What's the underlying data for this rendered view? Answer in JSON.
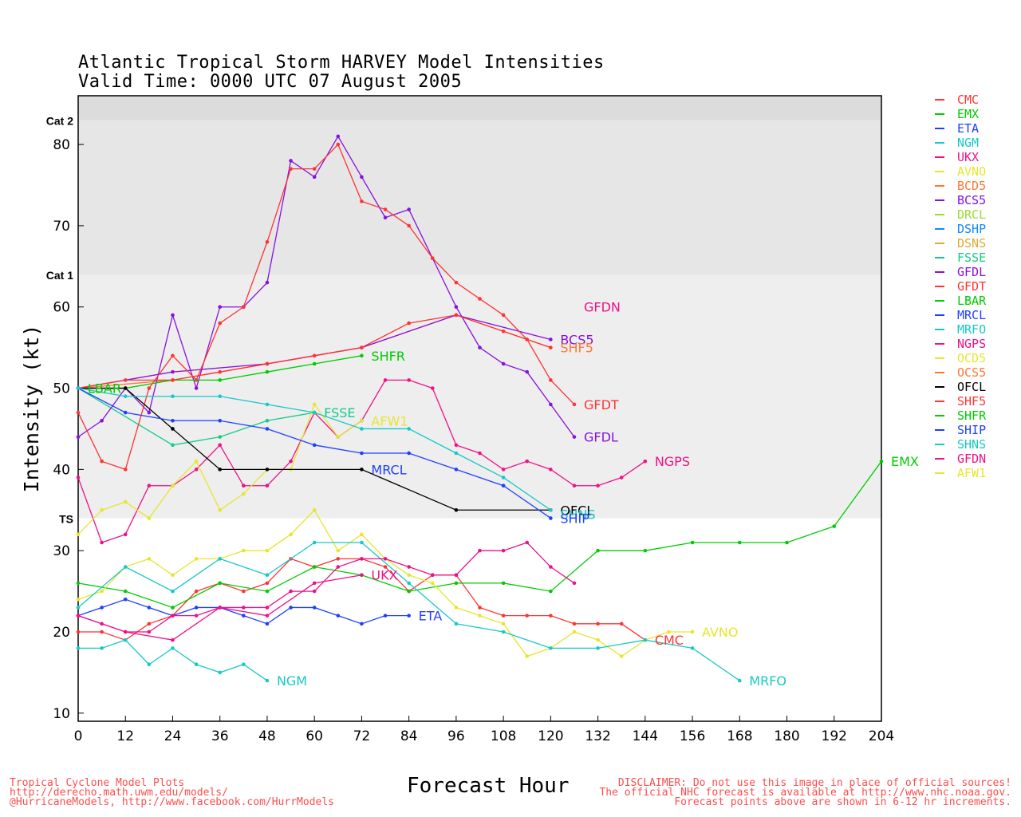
{
  "chart_data": {
    "type": "line",
    "title": "Atlantic Tropical Storm HARVEY Model Intensities",
    "subtitle": "Valid Time: 0000 UTC 07 August 2005",
    "xlabel": "Forecast Hour",
    "ylabel": "Intensity (kt)",
    "xlim": [
      0,
      204
    ],
    "ylim": [
      9,
      86
    ],
    "xticks": [
      0,
      12,
      24,
      36,
      48,
      60,
      72,
      84,
      96,
      108,
      120,
      132,
      144,
      156,
      168,
      180,
      192,
      204
    ],
    "yticks": [
      10,
      20,
      30,
      40,
      50,
      60,
      70,
      80
    ],
    "bands": [
      {
        "label": "TS",
        "value": 34,
        "color": "#eeeeee"
      },
      {
        "label": "Cat 1",
        "value": 64,
        "color": "#e6e6e6"
      },
      {
        "label": "Cat 2",
        "value": 83,
        "color": "#dcdcdc"
      }
    ],
    "series": [
      {
        "name": "CMC",
        "color": "#ff3333",
        "x": [
          0,
          6,
          12,
          18,
          24,
          30,
          36,
          42,
          48,
          54,
          60,
          66,
          72,
          78,
          84,
          90,
          96,
          102,
          108,
          114,
          120,
          126,
          132,
          138,
          144
        ],
        "y": [
          20,
          20,
          19,
          21,
          22,
          25,
          26,
          25,
          26,
          29,
          28,
          29,
          29,
          28,
          25,
          27,
          27,
          23,
          22,
          22,
          22,
          21,
          21,
          21,
          19
        ]
      },
      {
        "name": "EMX",
        "color": "#00cc00",
        "x": [
          0,
          12,
          24,
          36,
          48,
          60,
          72,
          84,
          96,
          108,
          120,
          132,
          144,
          156,
          168,
          180,
          192,
          204
        ],
        "y": [
          26,
          25,
          23,
          26,
          25,
          28,
          27,
          25,
          26,
          26,
          25,
          30,
          30,
          31,
          31,
          31,
          33,
          41
        ]
      },
      {
        "name": "ETA",
        "color": "#1f3fff",
        "x": [
          0,
          6,
          12,
          18,
          24,
          30,
          36,
          42,
          48,
          54,
          60,
          66,
          72,
          78,
          84
        ],
        "y": [
          22,
          23,
          24,
          23,
          22,
          23,
          23,
          22,
          21,
          23,
          23,
          22,
          21,
          22,
          22
        ]
      },
      {
        "name": "NGM",
        "color": "#18c8c8",
        "x": [
          0,
          6,
          12,
          18,
          24,
          30,
          36,
          42,
          48
        ],
        "y": [
          18,
          18,
          19,
          16,
          18,
          16,
          15,
          16,
          14
        ]
      },
      {
        "name": "UKX",
        "color": "#ee1188",
        "x": [
          0,
          12,
          24,
          36,
          48,
          60,
          72
        ],
        "y": [
          22,
          20,
          19,
          23,
          22,
          26,
          27
        ]
      },
      {
        "name": "AVNO",
        "color": "#e6e62e",
        "x": [
          0,
          6,
          12,
          18,
          24,
          30,
          36,
          42,
          48,
          54,
          60,
          66,
          72,
          78,
          84,
          90,
          96,
          102,
          108,
          114,
          120,
          126,
          132,
          138,
          144,
          150,
          156
        ],
        "y": [
          24,
          25,
          28,
          29,
          27,
          29,
          29,
          30,
          30,
          32,
          35,
          30,
          32,
          29,
          27,
          26,
          23,
          22,
          21,
          17,
          18,
          20,
          19,
          17,
          19,
          20,
          20
        ]
      },
      {
        "name": "BCD5",
        "color": "#ff7733",
        "x": [
          0,
          24,
          48,
          72,
          96,
          120
        ],
        "y": [
          50,
          51,
          53,
          55,
          59,
          55
        ]
      },
      {
        "name": "BCS5",
        "color": "#8811dd",
        "x": [
          0,
          24,
          48,
          72,
          96,
          120
        ],
        "y": [
          50,
          52,
          53,
          55,
          59,
          56
        ]
      },
      {
        "name": "DRCL",
        "color": "#99dd33",
        "x": [],
        "y": []
      },
      {
        "name": "DSHP",
        "color": "#1188ff",
        "x": [],
        "y": []
      },
      {
        "name": "DSNS",
        "color": "#ddaa33",
        "x": [],
        "y": []
      },
      {
        "name": "FSSE",
        "color": "#11cc88",
        "x": [
          0,
          24,
          36,
          48,
          60
        ],
        "y": [
          50,
          43,
          44,
          46,
          47
        ]
      },
      {
        "name": "GFDL",
        "color": "#8811dd",
        "x": [
          0,
          6,
          12,
          18,
          24,
          30,
          36,
          42,
          48,
          54,
          60,
          66,
          72,
          78,
          84,
          90,
          96,
          102,
          108,
          114,
          120,
          126
        ],
        "y": [
          44,
          46,
          50,
          47,
          59,
          50,
          60,
          60,
          63,
          78,
          76,
          81,
          76,
          71,
          72,
          66,
          60,
          55,
          53,
          52,
          48,
          44
        ]
      },
      {
        "name": "GFDT",
        "color": "#ff3333",
        "x": [
          0,
          6,
          12,
          18,
          24,
          30,
          36,
          42,
          48,
          54,
          60,
          66,
          72,
          78,
          84,
          90,
          96,
          102,
          108,
          114,
          120,
          126
        ],
        "y": [
          47,
          41,
          40,
          50,
          54,
          51,
          58,
          60,
          68,
          77,
          77,
          80,
          73,
          72,
          70,
          66,
          63,
          61,
          59,
          56,
          51,
          48
        ]
      },
      {
        "name": "LBAR",
        "color": "#00cc00",
        "x": [
          0,
          12,
          24,
          36,
          48,
          60,
          72
        ],
        "y": [
          50,
          50,
          51,
          51,
          52,
          53,
          54
        ]
      },
      {
        "name": "MRCL",
        "color": "#1f3fff",
        "x": [],
        "y": []
      },
      {
        "name": "MRFO",
        "color": "#18c8c8",
        "x": [
          0,
          12,
          24,
          36,
          48,
          60,
          72,
          84,
          96,
          108,
          120,
          132,
          144,
          156,
          168
        ],
        "y": [
          23,
          28,
          25,
          29,
          27,
          31,
          31,
          26,
          21,
          20,
          18,
          18,
          19,
          18,
          14
        ]
      },
      {
        "name": "NGPS",
        "color": "#ee1188",
        "x": [
          0,
          6,
          12,
          18,
          24,
          30,
          36,
          42,
          48,
          54,
          60,
          66,
          72,
          78,
          84,
          90,
          96,
          102,
          108,
          114,
          120,
          126,
          132,
          138,
          144
        ],
        "y": [
          39,
          31,
          32,
          38,
          38,
          40,
          43,
          38,
          38,
          41,
          47,
          44,
          46,
          51,
          51,
          50,
          43,
          42,
          40,
          41,
          40,
          38,
          38,
          39,
          41
        ]
      },
      {
        "name": "OCD5",
        "color": "#e6e62e",
        "x": [
          0,
          6,
          12,
          18,
          24,
          30,
          36,
          42,
          48,
          54,
          60,
          66,
          72
        ],
        "y": [
          32,
          35,
          36,
          34,
          38,
          41,
          35,
          37,
          40,
          40,
          48,
          44,
          46
        ]
      },
      {
        "name": "OCS5",
        "color": "#ff7733",
        "x": [],
        "y": []
      },
      {
        "name": "OFCL",
        "color": "#000000",
        "x": [
          0,
          12,
          24,
          36,
          48,
          72,
          96,
          120
        ],
        "y": [
          50,
          50,
          45,
          40,
          40,
          40,
          35,
          35
        ]
      },
      {
        "name": "SHF5",
        "color": "#ff3333",
        "x": [
          0,
          12,
          24,
          36,
          48,
          60,
          72,
          84,
          96,
          108,
          120
        ],
        "y": [
          50,
          51,
          51,
          52,
          53,
          54,
          55,
          58,
          59,
          57,
          55
        ]
      },
      {
        "name": "SHFR",
        "color": "#00cc00",
        "x": [],
        "y": []
      },
      {
        "name": "SHIP",
        "color": "#1f3fff",
        "x": [
          0,
          12,
          24,
          36,
          48,
          60,
          72,
          84,
          96,
          108,
          120
        ],
        "y": [
          50,
          47,
          46,
          46,
          45,
          43,
          42,
          42,
          40,
          38,
          34
        ]
      },
      {
        "name": "SHNS",
        "color": "#18c8c8",
        "x": [
          0,
          12,
          24,
          36,
          48,
          60,
          72,
          84,
          96,
          108,
          120
        ],
        "y": [
          50,
          49,
          49,
          49,
          48,
          47,
          45,
          45,
          42,
          39,
          35
        ]
      },
      {
        "name": "GFDN",
        "color": "#ee1188",
        "x": [
          0,
          6,
          12,
          18,
          24,
          30,
          36,
          42,
          48,
          54,
          60,
          66,
          72,
          78,
          84,
          90,
          96,
          102,
          108,
          114,
          120,
          126
        ],
        "y": [
          22,
          21,
          20,
          20,
          22,
          22,
          23,
          23,
          23,
          25,
          25,
          28,
          29,
          29,
          28,
          27,
          27,
          30,
          30,
          31,
          28,
          26
        ]
      },
      {
        "name": "AFW1",
        "color": "#e6e62e",
        "x": [],
        "y": []
      }
    ],
    "annotations": [
      {
        "text": "GFDN",
        "x": 126,
        "y": 60,
        "color": "#ee1188"
      },
      {
        "text": "BCS5",
        "x": 120,
        "y": 56,
        "color": "#8811dd"
      },
      {
        "text": "SHF5",
        "x": 120,
        "y": 55,
        "color": "#ff7733"
      },
      {
        "text": "SHFR",
        "x": 72,
        "y": 54,
        "color": "#00cc00"
      },
      {
        "text": "GFDT",
        "x": 126,
        "y": 48,
        "color": "#ff3333"
      },
      {
        "text": "GFDL",
        "x": 126,
        "y": 44,
        "color": "#8811dd"
      },
      {
        "text": "NGPS",
        "x": 144,
        "y": 41,
        "color": "#ee1188"
      },
      {
        "text": "EMX",
        "x": 204,
        "y": 41,
        "color": "#00cc00"
      },
      {
        "text": "LBAR",
        "x": 0,
        "y": 50,
        "color": "#00cc00"
      },
      {
        "text": "FSSE",
        "x": 60,
        "y": 47,
        "color": "#11cc88"
      },
      {
        "text": "AFW1",
        "x": 72,
        "y": 46,
        "color": "#e6e62e"
      },
      {
        "text": "MRCL",
        "x": 72,
        "y": 40,
        "color": "#1f3fff"
      },
      {
        "text": "OFCL",
        "x": 120,
        "y": 35,
        "color": "#000000"
      },
      {
        "text": "SHNS",
        "x": 120,
        "y": 34.5,
        "color": "#18c8c8"
      },
      {
        "text": "SHIP",
        "x": 120,
        "y": 34,
        "color": "#1f3fff"
      },
      {
        "text": "UKX",
        "x": 72,
        "y": 27,
        "color": "#ee1188"
      },
      {
        "text": "ETA",
        "x": 84,
        "y": 22,
        "color": "#1f3fff"
      },
      {
        "text": "AVNO",
        "x": 156,
        "y": 20,
        "color": "#e6e62e"
      },
      {
        "text": "CMC",
        "x": 144,
        "y": 19,
        "color": "#ff3333"
      },
      {
        "text": "NGM",
        "x": 48,
        "y": 14,
        "color": "#18c8c8"
      },
      {
        "text": "MRFO",
        "x": 168,
        "y": 14,
        "color": "#18c8c8"
      }
    ]
  },
  "legend": [
    {
      "name": "CMC",
      "color": "#ff3333"
    },
    {
      "name": "EMX",
      "color": "#00cc00"
    },
    {
      "name": "ETA",
      "color": "#1f3fff"
    },
    {
      "name": "NGM",
      "color": "#18c8c8"
    },
    {
      "name": "UKX",
      "color": "#ee1188"
    },
    {
      "name": "AVNO",
      "color": "#e6e62e"
    },
    {
      "name": "BCD5",
      "color": "#ff7733"
    },
    {
      "name": "BCS5",
      "color": "#8811dd"
    },
    {
      "name": "DRCL",
      "color": "#99dd33"
    },
    {
      "name": "DSHP",
      "color": "#1188ff"
    },
    {
      "name": "DSNS",
      "color": "#ddaa33"
    },
    {
      "name": "FSSE",
      "color": "#11cc88"
    },
    {
      "name": "GFDL",
      "color": "#8811dd"
    },
    {
      "name": "GFDT",
      "color": "#ff3333"
    },
    {
      "name": "LBAR",
      "color": "#00cc00"
    },
    {
      "name": "MRCL",
      "color": "#1f3fff"
    },
    {
      "name": "MRFO",
      "color": "#18c8c8"
    },
    {
      "name": "NGPS",
      "color": "#ee1188"
    },
    {
      "name": "OCD5",
      "color": "#e6e62e"
    },
    {
      "name": "OCS5",
      "color": "#ff7733"
    },
    {
      "name": "OFCL",
      "color": "#000000"
    },
    {
      "name": "SHF5",
      "color": "#ff3333"
    },
    {
      "name": "SHFR",
      "color": "#00cc00"
    },
    {
      "name": "SHIP",
      "color": "#1f3fff"
    },
    {
      "name": "SHNS",
      "color": "#18c8c8"
    },
    {
      "name": "GFDN",
      "color": "#ee1188"
    },
    {
      "name": "AFW1",
      "color": "#e6e62e"
    }
  ],
  "footer": {
    "left_line1": "Tropical Cyclone Model Plots",
    "left_line2": "http://derecho.math.uwm.edu/models/",
    "left_line3": "@HurricaneModels, http://www.facebook.com/HurrModels",
    "right_line1": "DISCLAIMER: Do not use this image in place of official sources!",
    "right_line2": "The official NHC forecast is available at http://www.nhc.noaa.gov.",
    "right_line3": "Forecast points above are shown in 6-12 hr increments."
  }
}
